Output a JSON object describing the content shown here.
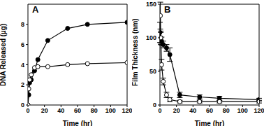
{
  "chart_data": [
    {
      "type": "line",
      "title": "A",
      "x_label": "Time (hr)",
      "y_label": "DNA Released (µg)",
      "xlim": [
        0,
        120
      ],
      "xticks": [
        0,
        20,
        40,
        60,
        80,
        100,
        120
      ],
      "ylim": [
        0,
        10
      ],
      "yticks": [
        0,
        2,
        4,
        6,
        8
      ],
      "series": [
        {
          "color": "#000000",
          "marker": "filled",
          "line_style": "solid",
          "x": [
            0,
            1,
            2,
            4,
            8,
            12,
            24,
            48,
            72,
            120
          ],
          "values": [
            0,
            1.0,
            2.2,
            2.5,
            3.4,
            4.5,
            6.4,
            7.6,
            8.0,
            8.2
          ]
        },
        {
          "color": "#000000",
          "marker": "open",
          "line_style": "solid",
          "x": [
            0,
            1,
            2,
            4,
            8,
            12,
            24,
            48,
            72,
            120
          ],
          "values": [
            0,
            1.6,
            2.5,
            3.0,
            3.7,
            3.8,
            3.8,
            4.0,
            4.1,
            4.2
          ]
        }
      ]
    },
    {
      "type": "line",
      "title": "B",
      "x_label": "Time (hr)",
      "y_label": "Film Thickness (nm)",
      "xlim": [
        0,
        120
      ],
      "xticks": [
        0,
        20,
        40,
        60,
        80,
        100,
        120
      ],
      "ylim": [
        0,
        150
      ],
      "yticks": [
        0,
        50,
        100,
        150
      ],
      "series": [
        {
          "color": "#000000",
          "marker": "filled",
          "line_style": "solid",
          "x": [
            0,
            1,
            2,
            4,
            8,
            12,
            24,
            48,
            72,
            120
          ],
          "values": [
            108,
            100,
            95,
            90,
            85,
            75,
            15,
            12,
            10,
            8
          ],
          "errors": [
            15,
            8,
            6,
            5,
            5,
            10,
            4,
            3,
            3,
            2
          ]
        },
        {
          "color": "#000000",
          "marker": "open",
          "line_style": "solid",
          "x": [
            0.5,
            1,
            2,
            4,
            8,
            12,
            24,
            48,
            72,
            120
          ],
          "values": [
            133,
            100,
            60,
            35,
            15,
            8,
            5,
            5,
            5,
            5
          ],
          "errors": [
            20,
            10,
            8,
            5,
            4,
            3,
            2,
            2,
            2,
            2
          ]
        }
      ]
    }
  ]
}
